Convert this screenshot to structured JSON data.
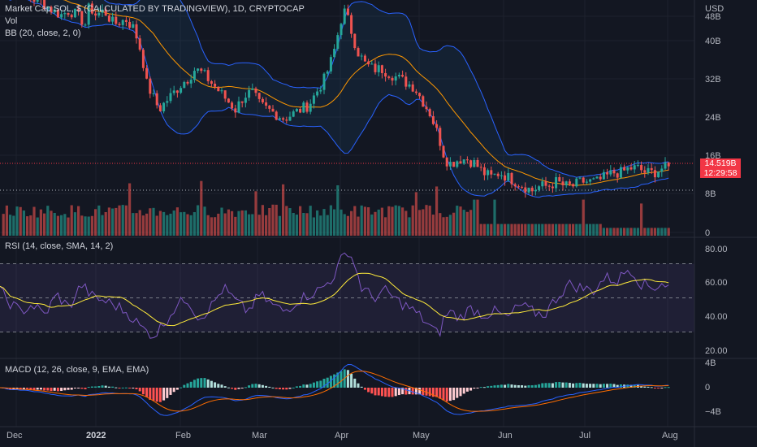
{
  "header": {
    "title": "Market Cap SOL, $ (CALCULATED BY TRADINGVIEW), 1D, CRYPTOCAP",
    "vol_label": "Vol",
    "bb_label": "BB (20, close, 2, 0)",
    "rsi_label": "RSI (14, close, SMA, 14, 2)",
    "macd_label": "MACD (12, 26, close, 9, EMA, EMA)",
    "currency": "USD"
  },
  "price_badge": {
    "value": "14.519B",
    "countdown": "12:29:58"
  },
  "colors": {
    "up": "#26a69a",
    "down": "#ef5350",
    "bb": "#2962ff",
    "bb_basis": "#ff9800",
    "rsi": "#7e57c2",
    "rsi_ma": "#ffeb3b",
    "macd": "#2962ff",
    "signal": "#ff6d00"
  },
  "chart_data": [
    {
      "type": "candlestick",
      "title": "Market Cap SOL, $ (CALCULATED BY TRADINGVIEW), 1D, CRYPTOCAP",
      "x_range": [
        "2021-11-30",
        "2022-08-01"
      ],
      "x_ticks": [
        "Dec",
        "2022",
        "Feb",
        "Mar",
        "Apr",
        "May",
        "Jun",
        "Jul",
        "Aug"
      ],
      "y_ticks": [
        "48B",
        "40B",
        "32B",
        "24B",
        "16B",
        "8B",
        "0"
      ],
      "y_unit": "USD",
      "ylim": [
        0,
        52
      ],
      "anchors": {
        "x": [
          0,
          10,
          20,
          35,
          50,
          65,
          75,
          85,
          95,
          105,
          110,
          118,
          128,
          140,
          155,
          165,
          175,
          180,
          188,
          196,
          205,
          215,
          225,
          232,
          240,
          250,
          260,
          270,
          280,
          290,
          300,
          310,
          320,
          330,
          340,
          350,
          360,
          370,
          380,
          390,
          400,
          410,
          415,
          420,
          425,
          430,
          435,
          440,
          450,
          460,
          470,
          480,
          490,
          500,
          510,
          520,
          530,
          540,
          548,
          555,
          565,
          575,
          585,
          595,
          605,
          615,
          625,
          635,
          645,
          655,
          665,
          675,
          685,
          695,
          705,
          715,
          725,
          735,
          745,
          755,
          765,
          775,
          785,
          795,
          805,
          815,
          825
        ],
        "close": [
          56,
          54,
          55,
          53,
          52,
          50,
          49,
          50,
          49,
          47,
          51,
          49,
          50,
          47,
          48,
          46,
          40,
          34,
          31,
          28,
          30,
          32,
          34,
          35,
          37,
          36,
          34,
          32,
          30,
          28,
          31,
          32,
          29,
          28,
          27,
          26,
          27,
          28,
          29,
          32,
          35,
          40,
          44,
          48,
          50,
          47,
          44,
          41,
          38,
          37,
          37,
          36,
          35,
          34,
          33,
          30,
          27,
          22,
          17,
          16,
          17,
          17,
          16,
          14,
          13,
          14,
          13,
          12,
          11,
          10,
          11,
          11,
          12,
          11,
          11,
          12,
          12,
          12,
          13,
          14,
          14,
          15,
          15,
          14,
          14,
          15,
          15
        ]
      },
      "bollinger": {
        "period": 20,
        "stddev": 2
      },
      "volume": {
        "label": "Vol",
        "ylim": [
          0,
          10
        ]
      },
      "last_value": "14.519B"
    },
    {
      "type": "line",
      "title": "RSI (14, close, SMA, 14, 2)",
      "y_ticks": [
        "80.00",
        "60.00",
        "40.00",
        "20.00"
      ],
      "ylim": [
        15,
        85
      ],
      "levels": [
        70,
        50,
        30
      ],
      "series": [
        {
          "anchors_x": [
            0,
            10,
            25,
            40,
            55,
            70,
            85,
            100,
            115,
            130,
            145,
            160,
            175,
            190,
            200,
            215,
            230,
            245,
            260,
            275,
            290,
            305,
            320,
            335,
            350,
            365,
            380,
            395,
            410,
            420,
            428,
            435,
            445,
            460,
            475,
            490,
            505,
            520,
            530,
            540,
            548,
            555,
            565,
            580,
            595,
            610,
            625,
            640,
            655,
            670,
            685,
            700,
            715,
            730,
            745,
            760,
            775,
            790,
            805,
            815,
            825
          ],
          "values": [
            54,
            48,
            42,
            46,
            40,
            52,
            44,
            58,
            50,
            48,
            45,
            40,
            32,
            28,
            34,
            44,
            50,
            38,
            45,
            56,
            48,
            42,
            52,
            46,
            42,
            48,
            52,
            55,
            62,
            72,
            78,
            72,
            56,
            50,
            54,
            48,
            44,
            38,
            33,
            28,
            40,
            42,
            38,
            44,
            40,
            42,
            38,
            46,
            42,
            40,
            50,
            58,
            56,
            54,
            62,
            60,
            68,
            58,
            56,
            59,
            56
          ]
        },
        {
          "smoothing": 14
        }
      ]
    },
    {
      "type": "macd",
      "title": "MACD (12, 26, close, 9, EMA, EMA)",
      "y_ticks": [
        "4B",
        "0",
        "−4B"
      ],
      "ylim": [
        -6,
        6
      ]
    }
  ]
}
